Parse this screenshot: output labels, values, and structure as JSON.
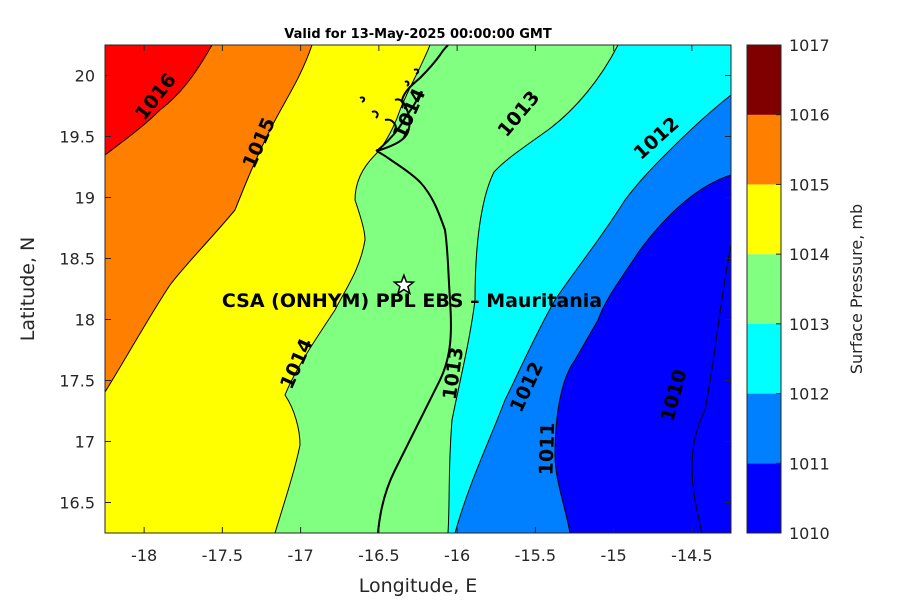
{
  "title": "Valid for 13-May-2025 00:00:00 GMT",
  "site_label": "CSA (ONHYM) PPL EBS  – Mauritania",
  "site_marker_icon": "star-icon",
  "x_axis": {
    "label": "Longitude, E",
    "ticks": [
      {
        "value": -18,
        "label": "-18"
      },
      {
        "value": -17.5,
        "label": "-17.5"
      },
      {
        "value": -17,
        "label": "-17"
      },
      {
        "value": -16.5,
        "label": "-16.5"
      },
      {
        "value": -16,
        "label": "-16"
      },
      {
        "value": -15.5,
        "label": "-15.5"
      },
      {
        "value": -15,
        "label": "-15"
      },
      {
        "value": -14.5,
        "label": "-14.5"
      }
    ]
  },
  "y_axis": {
    "label": "Latitude, N",
    "ticks": [
      {
        "value": 16.5,
        "label": "16.5"
      },
      {
        "value": 17,
        "label": "17"
      },
      {
        "value": 17.5,
        "label": "17.5"
      },
      {
        "value": 18,
        "label": "18"
      },
      {
        "value": 18.5,
        "label": "18.5"
      },
      {
        "value": 19,
        "label": "19"
      },
      {
        "value": 19.5,
        "label": "19.5"
      },
      {
        "value": 20,
        "label": "20"
      }
    ]
  },
  "colorbar": {
    "label": "Surface Pressure, mb",
    "levels": [
      {
        "label": "1010",
        "color": "#0000ff"
      },
      {
        "label": "1011",
        "color": "#0080ff"
      },
      {
        "label": "1012",
        "color": "#00ffff"
      },
      {
        "label": "1013",
        "color": "#80ff80"
      },
      {
        "label": "1014",
        "color": "#ffff00"
      },
      {
        "label": "1015",
        "color": "#ff8000"
      },
      {
        "label": "1016",
        "color": "#ff0000"
      },
      {
        "label": "1017",
        "color": "#800000"
      }
    ]
  },
  "contour_labels": [
    {
      "text": "1016",
      "lon": -17.93,
      "lat": 19.83,
      "rotation": -52
    },
    {
      "text": "1015",
      "lon": -17.27,
      "lat": 19.45,
      "rotation": -66
    },
    {
      "text": "1014",
      "lon": -17.03,
      "lat": 17.64,
      "rotation": -66
    },
    {
      "text": "1014",
      "lon": -16.31,
      "lat": 19.69,
      "rotation": -66
    },
    {
      "text": "1013",
      "lon": -15.61,
      "lat": 19.69,
      "rotation": -50
    },
    {
      "text": "1013",
      "lon": -16.03,
      "lat": 17.56,
      "rotation": -82
    },
    {
      "text": "1012",
      "lon": -14.73,
      "lat": 19.49,
      "rotation": -42
    },
    {
      "text": "1012",
      "lon": -15.56,
      "lat": 17.45,
      "rotation": -65
    },
    {
      "text": "1011",
      "lon": -15.43,
      "lat": 16.94,
      "rotation": -88
    },
    {
      "text": "1010",
      "lon": -14.62,
      "lat": 17.38,
      "rotation": -75
    }
  ],
  "site": {
    "lon": -16.34,
    "lat": 18.28
  },
  "map_extent": {
    "lon_min": -18.25,
    "lon_max": -14.25,
    "lat_min": 16.25,
    "lat_max": 20.25
  }
}
